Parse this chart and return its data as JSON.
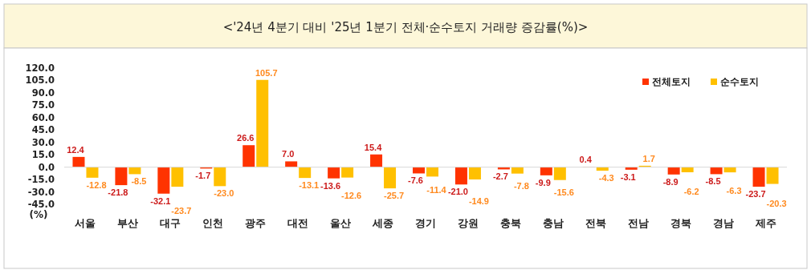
{
  "chart_data": {
    "type": "bar",
    "title": "<'24년 4분기 대비 '25년 1분기 전체·순수토지 거래량 증감률(%)>",
    "ylabel": "(%)",
    "categories": [
      "서울",
      "부산",
      "대구",
      "인천",
      "광주",
      "대전",
      "울산",
      "세종",
      "경기",
      "강원",
      "충북",
      "충남",
      "전북",
      "전남",
      "경북",
      "경남",
      "제주"
    ],
    "series": [
      {
        "name": "전체토지",
        "color": "#ff3300",
        "values": [
          12.4,
          -21.8,
          -32.1,
          -1.7,
          26.6,
          7.0,
          -13.6,
          15.4,
          -7.6,
          -21.0,
          -2.7,
          -9.9,
          0.4,
          -3.1,
          -8.9,
          -8.5,
          -23.7
        ],
        "value_labels": [
          "12.4",
          "-21.8",
          "-32.1",
          "-1.7",
          "26.6",
          "7.0",
          "-13.6",
          "15.4",
          "-7.6",
          "-21.0",
          "-2.7",
          "-9.9",
          "0.4",
          "-3.1",
          "-8.9",
          "-8.5",
          "-23.7"
        ]
      },
      {
        "name": "순수토지",
        "color": "#ffc000",
        "values": [
          -12.8,
          -8.5,
          -23.7,
          -23.0,
          105.7,
          -13.1,
          -12.6,
          -25.7,
          -11.4,
          -14.9,
          -7.8,
          -15.6,
          -4.3,
          1.7,
          -6.2,
          -6.3,
          -20.3
        ],
        "value_labels": [
          "-12.8",
          "-8.5",
          "-23.7",
          "-23.0",
          "105.7",
          "-13.1",
          "-12.6",
          "-25.7",
          "-11.4",
          "-14.9",
          "-7.8",
          "-15.6",
          "-4.3",
          "1.7",
          "-6.2",
          "-6.3",
          "-20.3"
        ]
      }
    ],
    "ylim": [
      -45,
      120
    ],
    "yticks": [
      {
        "value": 120,
        "label": "120.0"
      },
      {
        "value": 105,
        "label": "105.0"
      },
      {
        "value": 90,
        "label": "90.0"
      },
      {
        "value": 75,
        "label": "75.0"
      },
      {
        "value": 60,
        "label": "60.0"
      },
      {
        "value": 45,
        "label": "45.0"
      },
      {
        "value": 30,
        "label": "30.0"
      },
      {
        "value": 15,
        "label": "15.0"
      },
      {
        "value": 0,
        "label": "0.0"
      },
      {
        "value": -15,
        "label": "-15.0"
      },
      {
        "value": -30,
        "label": "-30.0"
      },
      {
        "value": -45,
        "label": "-45.0"
      }
    ],
    "legend": "top right"
  }
}
